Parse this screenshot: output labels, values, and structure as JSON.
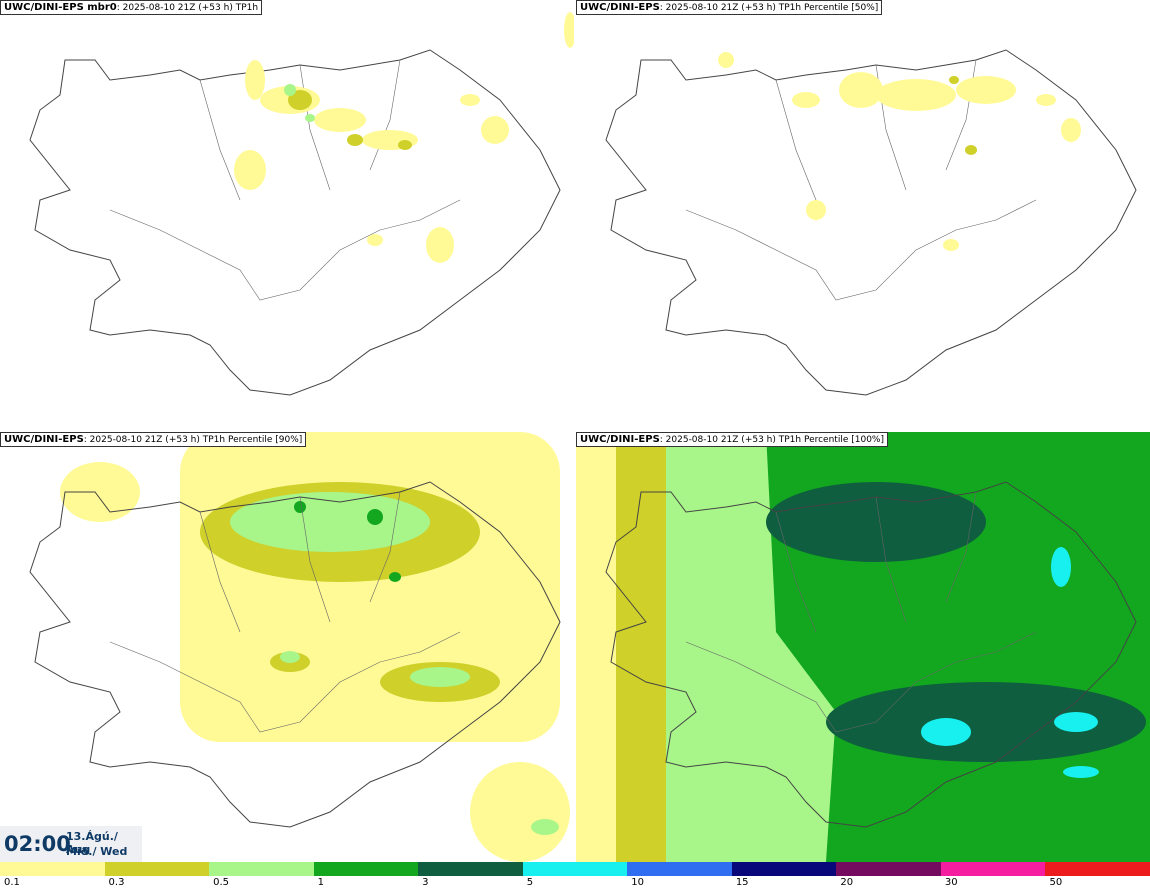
{
  "panels": [
    {
      "model": "UWC/DINI-EPS mbr0",
      "info": ": 2025-08-10 21Z (+53 h)",
      "field": " TP1h"
    },
    {
      "model": "UWC/DINI-EPS",
      "info": ": 2025-08-10 21Z (+53 h)",
      "field": " TP1h Percentile [50%]"
    },
    {
      "model": "UWC/DINI-EPS",
      "info": ": 2025-08-10 21Z (+53 h)",
      "field": " TP1h Percentile [90%]"
    },
    {
      "model": "UWC/DINI-EPS",
      "info": ": 2025-08-10 21Z (+53 h)",
      "field": " TP1h Percentile [100%]"
    }
  ],
  "time": {
    "hour": "02:00",
    "date": "13.Ágú./ Aug",
    "weekday": "Mið./ Wed"
  },
  "legend": {
    "colors": [
      "#fffa96",
      "#cfd02a",
      "#a8f58a",
      "#12a71e",
      "#0e5e3f",
      "#17f0ee",
      "#2f6ef0",
      "#08087a",
      "#740b5e",
      "#f51ea0",
      "#ee1b1e"
    ],
    "labels": [
      "0.1",
      "0.3",
      "0.5",
      "1",
      "3",
      "5",
      "10",
      "15",
      "20",
      "30",
      "50"
    ]
  }
}
